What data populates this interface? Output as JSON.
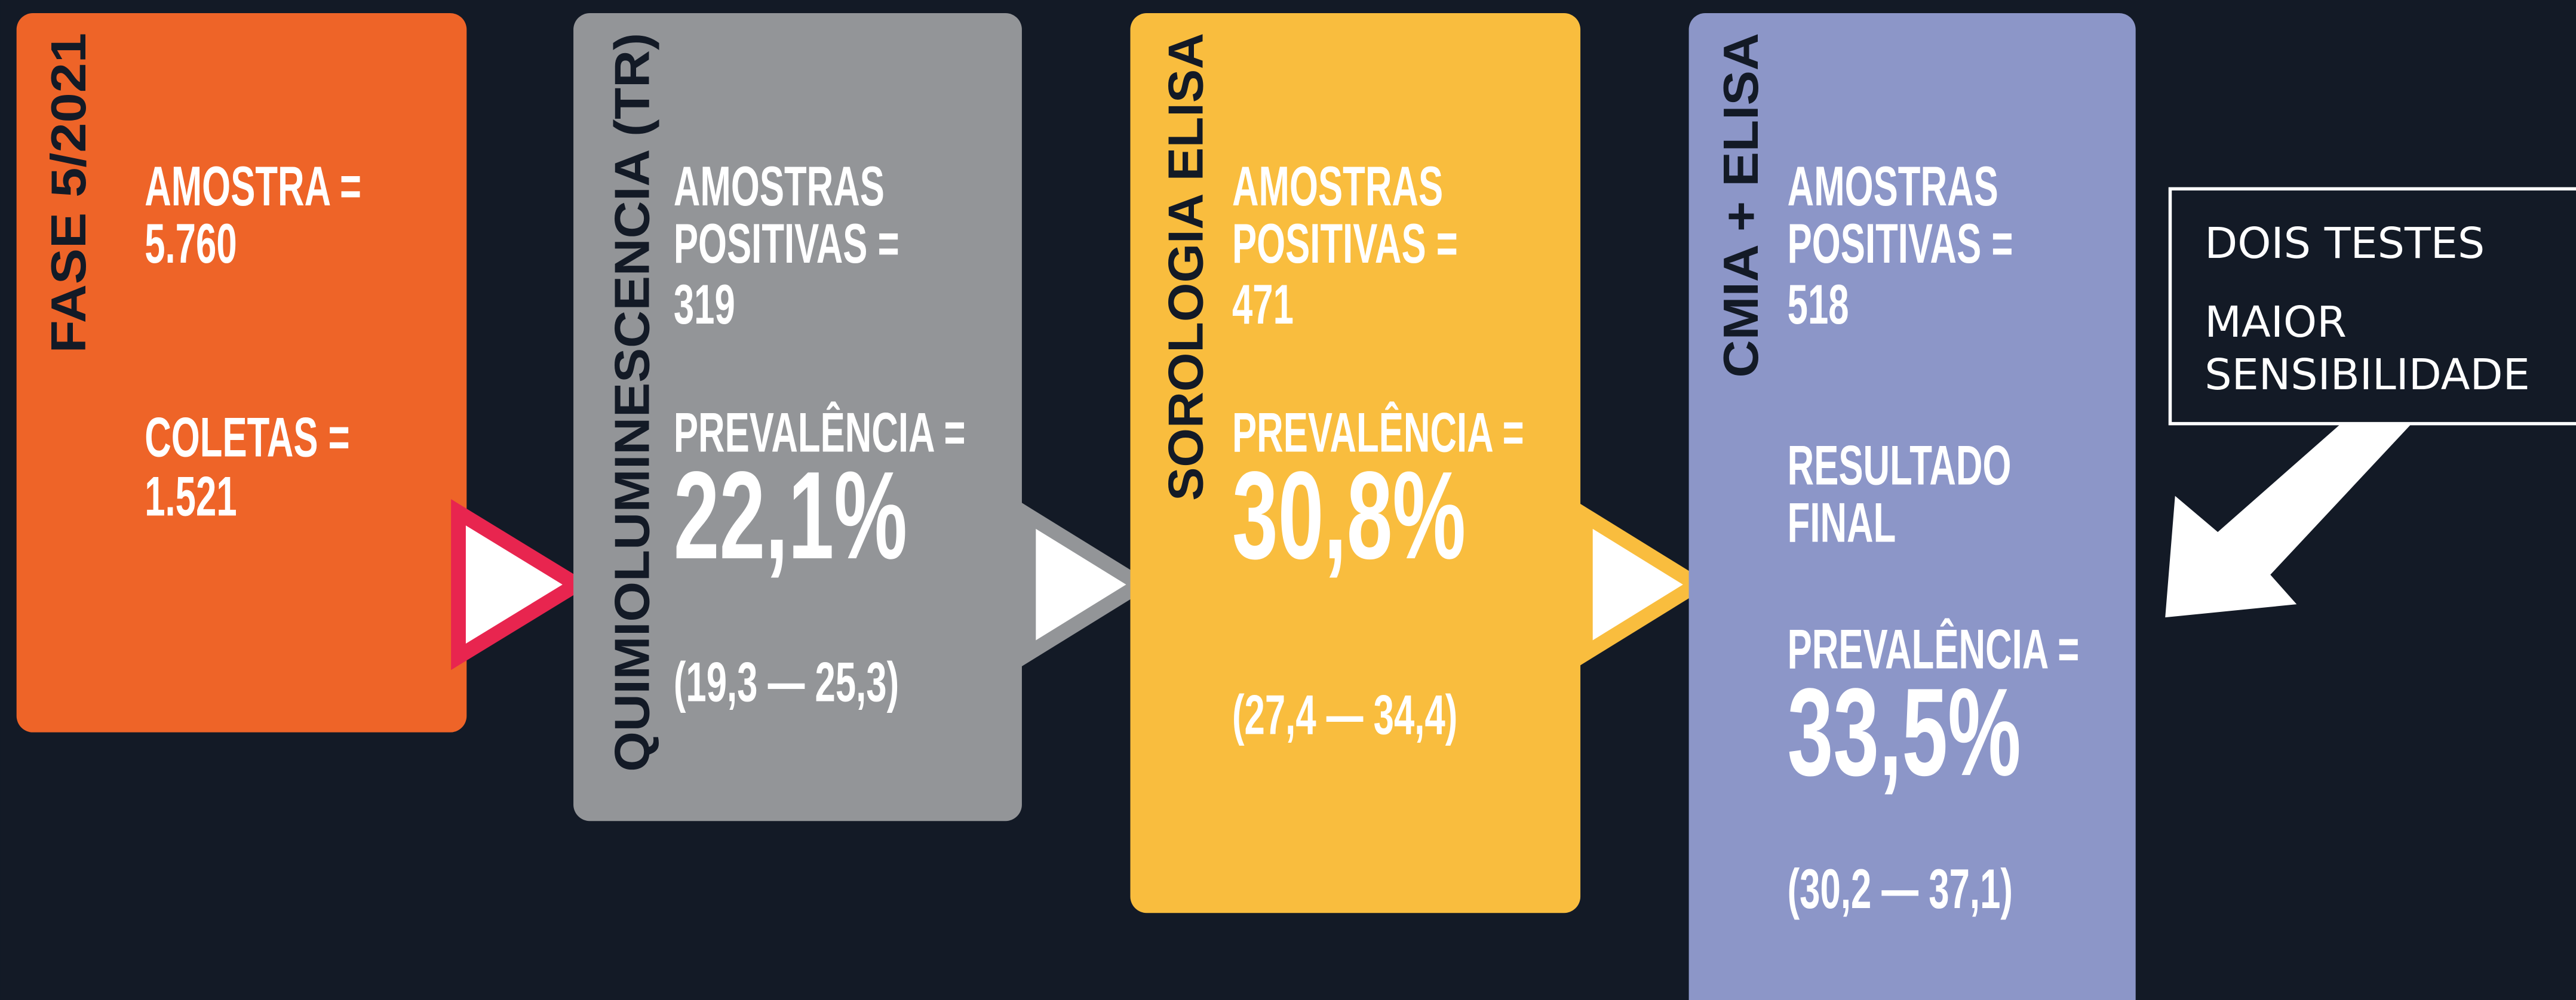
{
  "boxes": [
    {
      "label": "FASE 5/2021",
      "lines": [
        "AMOSTRA =",
        "5.760",
        "COLETAS =",
        "1.521"
      ]
    },
    {
      "label": "QUIMIOLUMINESCENCIA (TR)",
      "lines": [
        "AMOSTRAS",
        "POSITIVAS =",
        "319",
        "PREVALÊNCIA =",
        "22,1%",
        "(19,3 — 25,3)"
      ]
    },
    {
      "label": "SOROLOGIA ELISA",
      "lines": [
        "AMOSTRAS",
        "POSITIVAS =",
        "471",
        "PREVALÊNCIA =",
        "30,8%",
        "(27,4 — 34,4)"
      ]
    },
    {
      "label": "CMIA + ELISA",
      "lines": [
        "AMOSTRAS",
        "POSITIVAS =",
        "518",
        "RESULTADO",
        "FINAL",
        "PREVALÊNCIA =",
        "33,5%",
        "(30,2 — 37,1)"
      ]
    }
  ],
  "callout": {
    "lines": [
      "DOIS TESTES",
      "MAIOR",
      "SENSIBILIDADE"
    ]
  }
}
